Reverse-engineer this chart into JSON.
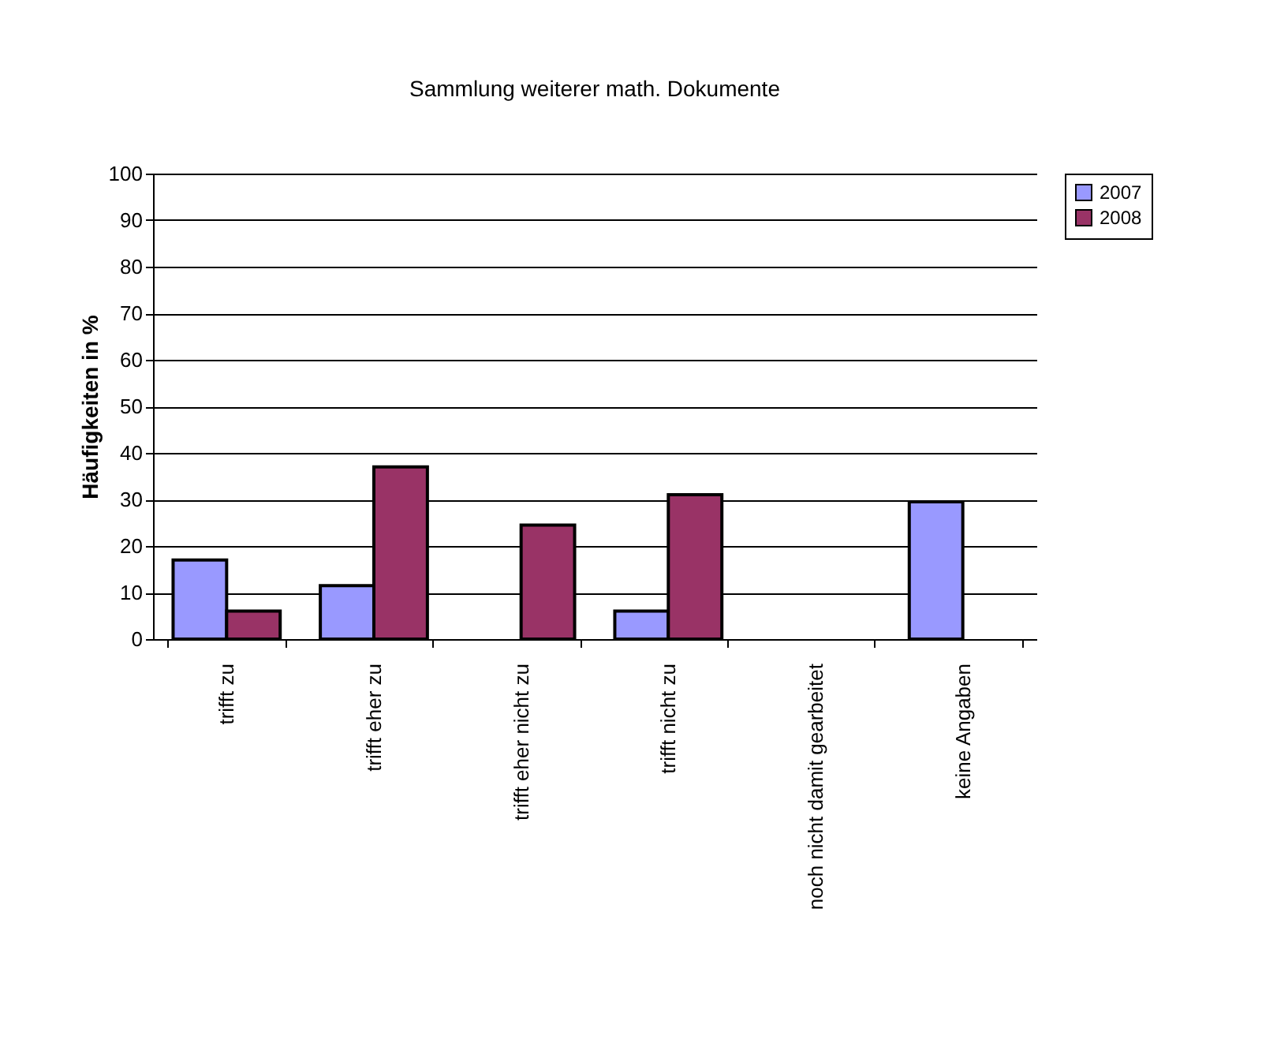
{
  "chart_data": {
    "type": "bar",
    "title": "Sammlung weiterer math. Dokumente",
    "ylabel": "Häufigkeiten in %",
    "categories": [
      "trifft zu",
      "trifft eher zu",
      "trifft eher nicht zu",
      "trifft nicht zu",
      "noch nicht damit gearbeitet",
      "keine Angaben"
    ],
    "series": [
      {
        "name": "2007",
        "color": "#9999ff",
        "values": [
          17,
          11.5,
          null,
          6,
          null,
          29.5
        ]
      },
      {
        "name": "2008",
        "color": "#993366",
        "values": [
          6,
          37,
          24.5,
          31,
          null,
          null
        ]
      }
    ],
    "ylim": [
      0,
      100
    ],
    "yticks": [
      0,
      10,
      20,
      30,
      40,
      50,
      60,
      70,
      80,
      90,
      100
    ],
    "grid": "y",
    "legend": "right"
  }
}
